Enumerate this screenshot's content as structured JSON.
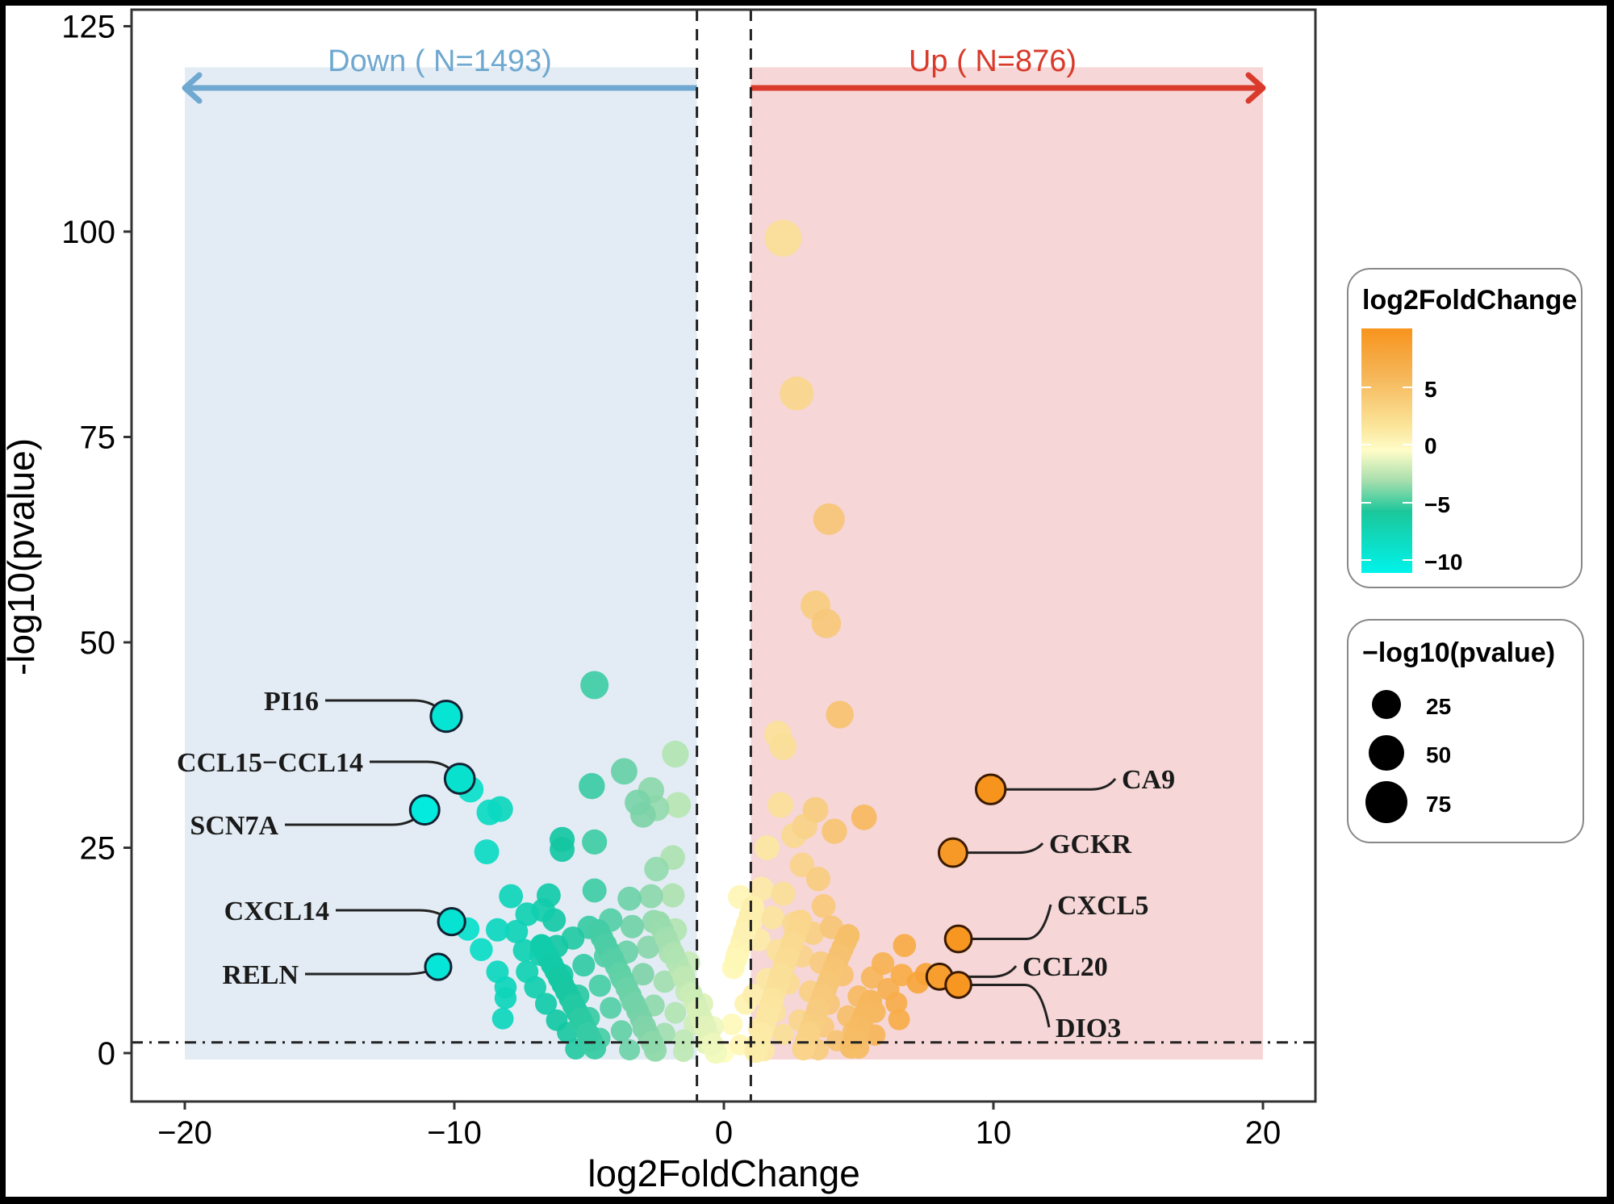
{
  "chart_data": {
    "type": "scatter",
    "subtype": "volcano",
    "title": "",
    "xlabel": "log2FoldChange",
    "ylabel": "-log10(pvalue)",
    "xlim": [
      -22,
      22
    ],
    "ylim": [
      -6,
      127
    ],
    "x_ticks": [
      -20,
      -10,
      0,
      10,
      20
    ],
    "x_tick_labels": [
      "−20",
      "−10",
      "0",
      "10",
      "20"
    ],
    "y_ticks": [
      0,
      25,
      50,
      75,
      100,
      125
    ],
    "y_tick_labels": [
      "0",
      "25",
      "50",
      "75",
      "100",
      "125"
    ],
    "grid": false,
    "thresholds": {
      "log2fc_vertical_lines": [
        -1,
        1
      ],
      "pvalue_horizontal_line": 1.3
    },
    "regions": [
      {
        "name": "Down",
        "label": "Down ( N=1493)",
        "count": 1493,
        "x_range": [
          -20,
          -1
        ],
        "y_top": 120,
        "fill": "#e3ecf4",
        "arrow_color": "#6fa8d0",
        "arrow_direction": "left"
      },
      {
        "name": "Up",
        "label": "Up ( N=876)",
        "count": 876,
        "x_range": [
          1,
          20
        ],
        "y_top": 120,
        "fill": "#f6d6d6",
        "arrow_color": "#d93a2b",
        "arrow_direction": "right"
      }
    ],
    "color_scale": {
      "variable": "log2FoldChange",
      "stops": [
        {
          "value": -12,
          "color": "#00f0e8"
        },
        {
          "value": -6,
          "color": "#14c7a2"
        },
        {
          "value": -3,
          "color": "#7fd3a8"
        },
        {
          "value": 0,
          "color": "#fffdc0"
        },
        {
          "value": 4,
          "color": "#f6c575"
        },
        {
          "value": 9,
          "color": "#f7941d"
        }
      ]
    },
    "size_scale": {
      "variable": "-log10(pvalue)",
      "breaks": [
        25,
        50,
        75
      ]
    },
    "labeled_genes": [
      {
        "gene": "PI16",
        "x": -10.3,
        "y": 41.0,
        "label_side": "left"
      },
      {
        "gene": "CCL15−CCL14",
        "x": -9.8,
        "y": 33.4,
        "label_side": "left"
      },
      {
        "gene": "SCN7A",
        "x": -11.1,
        "y": 29.6,
        "label_side": "left"
      },
      {
        "gene": "CXCL14",
        "x": -10.1,
        "y": 16.0,
        "label_side": "left"
      },
      {
        "gene": "RELN",
        "x": -10.6,
        "y": 10.5,
        "label_side": "left"
      },
      {
        "gene": "CA9",
        "x": 9.9,
        "y": 32.1,
        "label_side": "right"
      },
      {
        "gene": "GCKR",
        "x": 8.5,
        "y": 24.4,
        "label_side": "right"
      },
      {
        "gene": "CXCL5",
        "x": 8.7,
        "y": 13.9,
        "label_side": "right"
      },
      {
        "gene": "CCL20",
        "x": 8.0,
        "y": 9.3,
        "label_side": "right"
      },
      {
        "gene": "DIO3",
        "x": 8.7,
        "y": 8.3,
        "label_side": "right"
      }
    ],
    "points": [
      {
        "x": 2.2,
        "y": 99.2
      },
      {
        "x": 2.7,
        "y": 80.3
      },
      {
        "x": 3.9,
        "y": 65.0
      },
      {
        "x": 3.4,
        "y": 54.5
      },
      {
        "x": 3.8,
        "y": 52.3
      },
      {
        "x": 4.3,
        "y": 41.2
      },
      {
        "x": 2.0,
        "y": 38.8
      },
      {
        "x": 2.2,
        "y": 37.3
      },
      {
        "x": 2.1,
        "y": 30.2
      },
      {
        "x": 3.4,
        "y": 29.6
      },
      {
        "x": 5.2,
        "y": 28.7
      },
      {
        "x": 3.0,
        "y": 27.6
      },
      {
        "x": 2.6,
        "y": 26.5
      },
      {
        "x": 4.1,
        "y": 27.0
      },
      {
        "x": 1.6,
        "y": 25.0
      },
      {
        "x": 2.9,
        "y": 22.9
      },
      {
        "x": 3.5,
        "y": 21.2
      },
      {
        "x": 1.4,
        "y": 20.0
      },
      {
        "x": 2.2,
        "y": 19.4
      },
      {
        "x": 3.7,
        "y": 17.9
      },
      {
        "x": 1.8,
        "y": 16.5
      },
      {
        "x": 2.6,
        "y": 15.8
      },
      {
        "x": 3.3,
        "y": 14.6
      },
      {
        "x": 4.0,
        "y": 15.3
      },
      {
        "x": 1.3,
        "y": 13.8
      },
      {
        "x": 2.0,
        "y": 12.5
      },
      {
        "x": 2.9,
        "y": 11.8
      },
      {
        "x": 3.6,
        "y": 11.0
      },
      {
        "x": 4.4,
        "y": 9.5
      },
      {
        "x": 6.7,
        "y": 13.1
      },
      {
        "x": 5.9,
        "y": 10.9
      },
      {
        "x": 5.5,
        "y": 9.2
      },
      {
        "x": 6.6,
        "y": 9.5
      },
      {
        "x": 7.2,
        "y": 8.6
      },
      {
        "x": 7.5,
        "y": 9.6
      },
      {
        "x": 6.1,
        "y": 7.8
      },
      {
        "x": 5.0,
        "y": 6.9
      },
      {
        "x": 6.4,
        "y": 6.1
      },
      {
        "x": 5.6,
        "y": 5.0
      },
      {
        "x": 4.6,
        "y": 4.5
      },
      {
        "x": 6.5,
        "y": 4.1
      },
      {
        "x": 3.9,
        "y": 6.0
      },
      {
        "x": 3.2,
        "y": 7.5
      },
      {
        "x": 2.4,
        "y": 8.5
      },
      {
        "x": 1.6,
        "y": 9.0
      },
      {
        "x": 1.1,
        "y": 7.1
      },
      {
        "x": 1.9,
        "y": 5.0
      },
      {
        "x": 2.8,
        "y": 4.0
      },
      {
        "x": 3.7,
        "y": 3.2
      },
      {
        "x": 4.8,
        "y": 2.7
      },
      {
        "x": 5.6,
        "y": 2.2
      },
      {
        "x": 1.3,
        "y": 3.0
      },
      {
        "x": 2.2,
        "y": 2.3
      },
      {
        "x": 3.1,
        "y": 1.7
      },
      {
        "x": 4.2,
        "y": 1.5
      },
      {
        "x": 0.6,
        "y": 1.0
      },
      {
        "x": 0.3,
        "y": 3.5
      },
      {
        "x": 0.8,
        "y": 6.0
      },
      {
        "x": 0.5,
        "y": 12.0
      },
      {
        "x": 1.0,
        "y": 16.0
      },
      {
        "x": 0.6,
        "y": 19.0
      },
      {
        "x": -4.8,
        "y": 44.8
      },
      {
        "x": -1.8,
        "y": 36.4
      },
      {
        "x": -3.7,
        "y": 34.3
      },
      {
        "x": -2.7,
        "y": 32.0
      },
      {
        "x": -4.9,
        "y": 32.5
      },
      {
        "x": -3.2,
        "y": 30.5
      },
      {
        "x": -2.5,
        "y": 29.8
      },
      {
        "x": -1.7,
        "y": 30.2
      },
      {
        "x": -3.0,
        "y": 29.0
      },
      {
        "x": -6.0,
        "y": 26.0
      },
      {
        "x": -6.0,
        "y": 24.8
      },
      {
        "x": -4.8,
        "y": 25.7
      },
      {
        "x": -1.9,
        "y": 23.8
      },
      {
        "x": -2.5,
        "y": 22.4
      },
      {
        "x": -6.5,
        "y": 19.2
      },
      {
        "x": -4.8,
        "y": 19.8
      },
      {
        "x": -3.5,
        "y": 18.8
      },
      {
        "x": -2.7,
        "y": 19.1
      },
      {
        "x": -1.9,
        "y": 19.2
      },
      {
        "x": -7.9,
        "y": 19.1
      },
      {
        "x": -8.3,
        "y": 29.7
      },
      {
        "x": -8.7,
        "y": 29.3
      },
      {
        "x": -9.4,
        "y": 32.1
      },
      {
        "x": -8.8,
        "y": 24.5
      },
      {
        "x": -9.5,
        "y": 15.1
      },
      {
        "x": -8.4,
        "y": 15.0
      },
      {
        "x": -9.0,
        "y": 12.6
      },
      {
        "x": -7.7,
        "y": 14.8
      },
      {
        "x": -7.3,
        "y": 16.9
      },
      {
        "x": -6.7,
        "y": 17.4
      },
      {
        "x": -6.3,
        "y": 16.2
      },
      {
        "x": -8.4,
        "y": 9.9
      },
      {
        "x": -8.1,
        "y": 8.0
      },
      {
        "x": -8.1,
        "y": 6.7
      },
      {
        "x": -8.2,
        "y": 4.2
      },
      {
        "x": -7.3,
        "y": 9.9
      },
      {
        "x": -7.4,
        "y": 12.5
      },
      {
        "x": -6.8,
        "y": 12.0
      },
      {
        "x": -6.2,
        "y": 13.0
      },
      {
        "x": -5.6,
        "y": 14.0
      },
      {
        "x": -5.0,
        "y": 15.3
      },
      {
        "x": -4.2,
        "y": 16.2
      },
      {
        "x": -3.4,
        "y": 15.4
      },
      {
        "x": -2.6,
        "y": 16.0
      },
      {
        "x": -1.8,
        "y": 15.0
      },
      {
        "x": -7.0,
        "y": 8.0
      },
      {
        "x": -6.6,
        "y": 6.0
      },
      {
        "x": -6.2,
        "y": 4.0
      },
      {
        "x": -5.8,
        "y": 2.5
      },
      {
        "x": -6.0,
        "y": 9.5
      },
      {
        "x": -5.2,
        "y": 10.7
      },
      {
        "x": -4.4,
        "y": 11.8
      },
      {
        "x": -3.6,
        "y": 12.3
      },
      {
        "x": -2.8,
        "y": 12.9
      },
      {
        "x": -2.0,
        "y": 12.2
      },
      {
        "x": -1.3,
        "y": 11.0
      },
      {
        "x": -5.4,
        "y": 7.0
      },
      {
        "x": -4.6,
        "y": 8.2
      },
      {
        "x": -3.8,
        "y": 9.1
      },
      {
        "x": -3.0,
        "y": 9.6
      },
      {
        "x": -2.2,
        "y": 8.7
      },
      {
        "x": -1.4,
        "y": 7.5
      },
      {
        "x": -5.0,
        "y": 4.3
      },
      {
        "x": -4.2,
        "y": 5.5
      },
      {
        "x": -3.4,
        "y": 6.2
      },
      {
        "x": -2.6,
        "y": 5.8
      },
      {
        "x": -1.8,
        "y": 4.9
      },
      {
        "x": -1.1,
        "y": 3.5
      },
      {
        "x": -4.6,
        "y": 1.8
      },
      {
        "x": -3.8,
        "y": 2.7
      },
      {
        "x": -3.0,
        "y": 3.0
      },
      {
        "x": -2.2,
        "y": 2.4
      },
      {
        "x": -1.5,
        "y": 1.6
      },
      {
        "x": -0.7,
        "y": 1.2
      },
      {
        "x": -0.4,
        "y": 3.2
      },
      {
        "x": -0.8,
        "y": 6.0
      },
      {
        "x": -5.5,
        "y": 0.5
      },
      {
        "x": -3.5,
        "y": 0.4
      },
      {
        "x": -1.5,
        "y": 0.2
      },
      {
        "x": 1.5,
        "y": 0.3
      },
      {
        "x": 3.5,
        "y": 0.4
      },
      {
        "x": 5.0,
        "y": 0.6
      },
      {
        "x": 0.0,
        "y": 0.1
      }
    ]
  },
  "legend": {
    "color_title": "log2FoldChange",
    "color_labels": [
      "5",
      "0",
      "−5",
      "−10"
    ],
    "size_title": "−log10(pvalue)",
    "size_labels": [
      "25",
      "50",
      "75"
    ]
  }
}
